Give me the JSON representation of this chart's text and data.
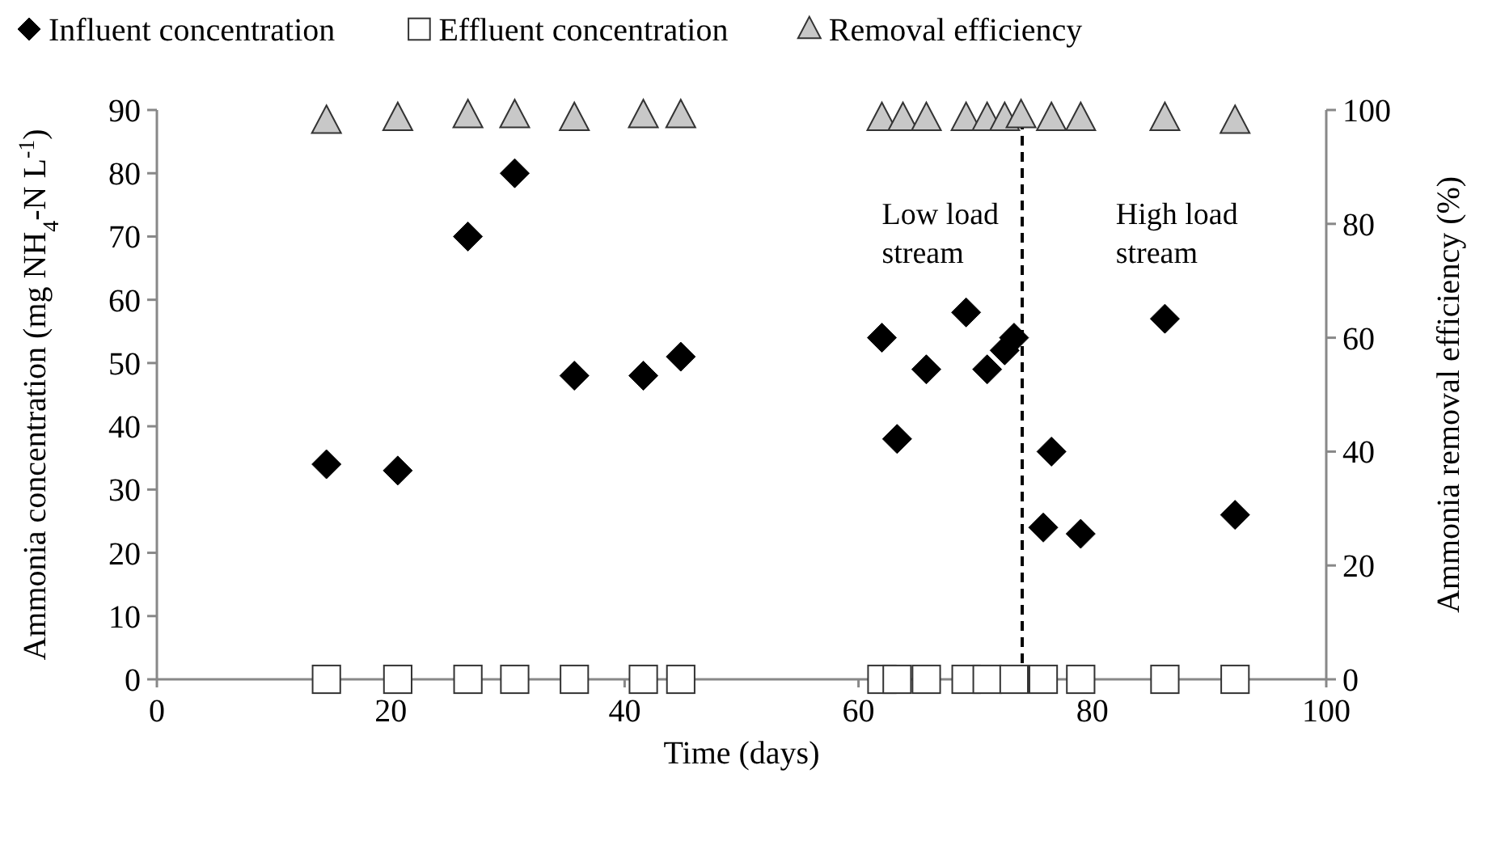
{
  "chart_data": {
    "type": "scatter",
    "xlabel": "Time (days)",
    "ylabel": "Ammonia concentration (mg NH$_{4}$-N L$^{-1}$)",
    "y2label": "Ammonia  removal efficiency (%)",
    "xlim": [
      0,
      100
    ],
    "xticks": [
      0,
      20,
      40,
      60,
      80,
      100
    ],
    "ylim": [
      0,
      90
    ],
    "yticks": [
      0,
      10,
      20,
      30,
      40,
      50,
      60,
      70,
      80,
      90
    ],
    "y2lim": [
      0,
      100
    ],
    "y2ticks": [
      0,
      20,
      40,
      60,
      80,
      100
    ],
    "legend": "top",
    "grid": false,
    "series": [
      {
        "name": "Influent concentration",
        "color": "#000000",
        "marker": "diamond",
        "x": [
          14.5,
          20.6,
          26.6,
          30.6,
          35.7,
          41.6,
          44.8,
          62,
          63.3,
          65.8,
          69.2,
          71,
          72.5,
          73.3,
          75.8,
          76.5,
          79,
          86.2,
          92.2
        ],
        "values": [
          34,
          33,
          70,
          80,
          48,
          48,
          51,
          54,
          38,
          49,
          58,
          49,
          52,
          54,
          24,
          36,
          23,
          57,
          26
        ]
      },
      {
        "name": "Effluent concentration",
        "color": "#ffffff",
        "marker": "square",
        "x": [
          14.5,
          20.6,
          26.6,
          30.6,
          35.7,
          41.6,
          44.8,
          62,
          63.3,
          65.8,
          69.2,
          71,
          73.3,
          75.8,
          79,
          86.2,
          92.2
        ],
        "values": [
          0,
          0,
          0,
          0,
          0,
          0,
          0,
          0,
          0,
          0,
          0,
          0,
          0,
          0,
          0,
          0,
          0
        ]
      },
      {
        "name": "Removal efficiency",
        "color": "#c8c8c8",
        "marker": "triangle",
        "axis": "y2",
        "x": [
          14.5,
          20.6,
          26.6,
          30.6,
          35.7,
          41.6,
          44.8,
          62,
          63.8,
          65.8,
          69.2,
          71,
          72.5,
          73.9,
          76.5,
          79,
          86.2,
          92.2
        ],
        "values": [
          98,
          98.5,
          99,
          99,
          98.5,
          99,
          99,
          98.5,
          98.5,
          98.5,
          98.5,
          98.5,
          98.5,
          99,
          98.5,
          98.5,
          98.5,
          98
        ]
      }
    ],
    "ref_lines": [
      {
        "axis": "x",
        "value": 74,
        "line_style": "dashed",
        "color": "#000000"
      }
    ],
    "annotations": [
      "Low load stream",
      "High load stream"
    ]
  }
}
